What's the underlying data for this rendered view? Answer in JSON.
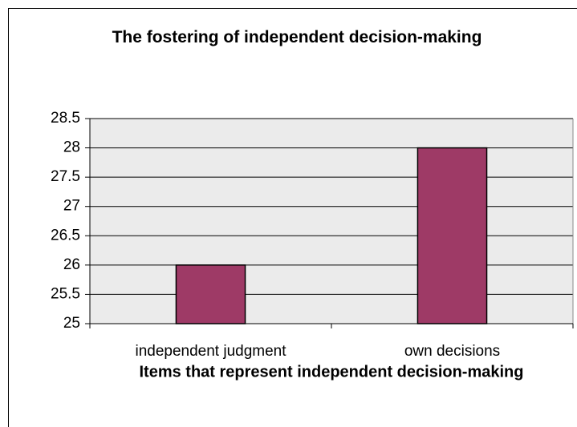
{
  "chart_data": {
    "type": "bar",
    "title": "The fostering of independent decision-making",
    "x_label": "Items that represent independent decision-making",
    "categories": [
      "independent judgment",
      "own decisions"
    ],
    "values": [
      26,
      28
    ],
    "color": "#9e3a66",
    "ylim": [
      25,
      28.5
    ],
    "yticks": [
      25,
      25.5,
      26,
      26.5,
      27,
      27.5,
      28,
      28.5
    ],
    "grid": true
  }
}
